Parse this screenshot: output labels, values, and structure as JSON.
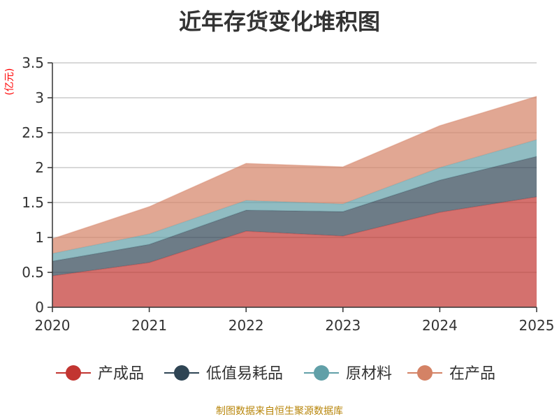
{
  "chart_data": {
    "type": "area",
    "stacked": true,
    "title": "近年存货变化堆积图",
    "ylabel": "(亿元)",
    "xlabel": "",
    "categories": [
      "2020",
      "2021",
      "2022",
      "2023",
      "2024",
      "2025"
    ],
    "ylim": [
      0,
      3.5
    ],
    "yticks": [
      "0",
      "0.5",
      "1",
      "1.5",
      "2",
      "2.5",
      "3",
      "3.5"
    ],
    "grid": true,
    "legend_position": "bottom",
    "series": [
      {
        "name": "产成品",
        "values": [
          0.45,
          0.64,
          1.09,
          1.02,
          1.36,
          1.58
        ],
        "color": "#c23531"
      },
      {
        "name": "低值易耗品",
        "values": [
          0.21,
          0.26,
          0.3,
          0.35,
          0.46,
          0.58
        ],
        "color": "#2f4554"
      },
      {
        "name": "原材料",
        "values": [
          0.11,
          0.15,
          0.14,
          0.11,
          0.18,
          0.24
        ],
        "color": "#61a0a8"
      },
      {
        "name": "在产品",
        "values": [
          0.21,
          0.39,
          0.53,
          0.53,
          0.6,
          0.62
        ],
        "color": "#d48265"
      }
    ],
    "unit_color": "#ff0000",
    "source_color": "#b8860b"
  },
  "footer": {
    "source_text": "制图数据来自恒生聚源数据库"
  }
}
